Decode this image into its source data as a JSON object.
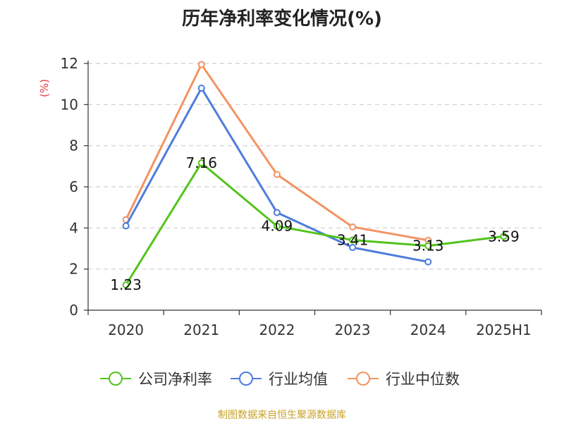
{
  "chart_data": {
    "type": "line",
    "title": "历年净利率变化情况(%)",
    "ylabel": "(%)",
    "categories": [
      "2020",
      "2021",
      "2022",
      "2023",
      "2024",
      "2025H1"
    ],
    "ylim": [
      0,
      12
    ],
    "yticks": [
      0,
      2,
      4,
      6,
      8,
      10,
      12
    ],
    "grid": true,
    "legend_position": "bottom",
    "series": [
      {
        "name": "公司净利率",
        "color": "#52c41a",
        "values": [
          1.23,
          7.16,
          4.09,
          3.41,
          3.13,
          3.59
        ],
        "labels": [
          "1.23",
          "7.16",
          "4.09",
          "3.41",
          "3.13",
          "3.59"
        ]
      },
      {
        "name": "行业均值",
        "color": "#4e7ddb",
        "values": [
          4.1,
          10.8,
          4.75,
          3.05,
          2.35,
          null
        ]
      },
      {
        "name": "行业中位数",
        "color": "#f39361",
        "values": [
          4.4,
          11.95,
          6.6,
          4.05,
          3.4,
          null
        ]
      }
    ],
    "source": "制图数据来自恒生聚源数据库"
  }
}
